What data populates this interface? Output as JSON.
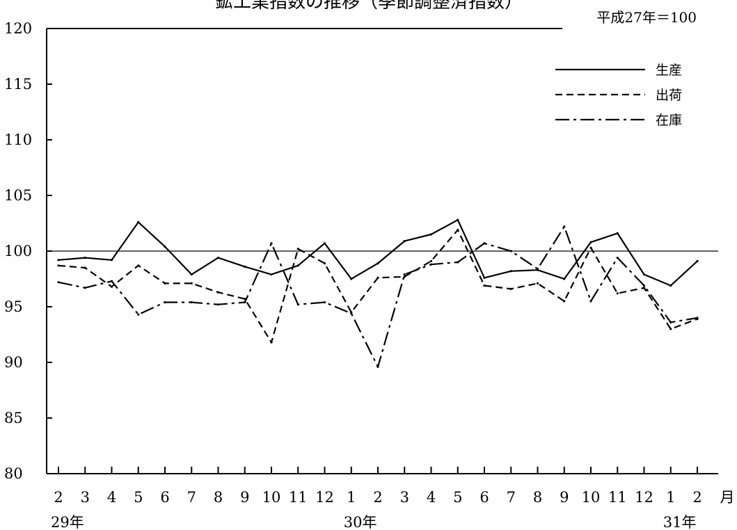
{
  "chart_data": {
    "type": "line",
    "title": "鉱工業指数の推移（季節調整済指数）",
    "base_note": "平成27年＝100",
    "ylim": [
      80,
      120
    ],
    "yticks": [
      80,
      85,
      90,
      95,
      100,
      105,
      110,
      115,
      120
    ],
    "x_unit": "月",
    "categories": [
      "2",
      "3",
      "4",
      "5",
      "6",
      "7",
      "8",
      "9",
      "10",
      "11",
      "12",
      "1",
      "2",
      "3",
      "4",
      "5",
      "6",
      "7",
      "8",
      "9",
      "10",
      "11",
      "12",
      "1",
      "2"
    ],
    "year_labels": [
      {
        "label": "29年",
        "index": 0
      },
      {
        "label": "30年",
        "index": 11
      },
      {
        "label": "31年",
        "index": 23
      }
    ],
    "reference_line": 100,
    "legend_position": "top-right",
    "series": [
      {
        "name": "生産",
        "dash": "solid",
        "values": [
          99.2,
          99.4,
          99.2,
          102.6,
          100.4,
          97.9,
          99.4,
          98.6,
          97.9,
          98.7,
          100.7,
          97.5,
          98.9,
          100.9,
          101.5,
          102.8,
          97.6,
          98.2,
          98.3,
          97.5,
          100.8,
          101.6,
          97.9,
          96.9,
          99.1
        ]
      },
      {
        "name": "出荷",
        "dash": "dashed",
        "values": [
          98.7,
          98.5,
          96.8,
          98.7,
          97.1,
          97.1,
          96.3,
          95.7,
          91.8,
          100.2,
          98.9,
          94.5,
          97.6,
          97.7,
          99.1,
          101.9,
          96.9,
          96.6,
          97.1,
          95.5,
          100.3,
          96.2,
          96.7,
          93.0,
          93.9
        ]
      },
      {
        "name": "在庫",
        "dash": "dashdot",
        "values": [
          97.2,
          96.7,
          97.3,
          94.3,
          95.4,
          95.4,
          95.2,
          95.4,
          100.7,
          95.2,
          95.4,
          94.4,
          89.6,
          97.9,
          98.8,
          99.0,
          100.7,
          100.0,
          98.4,
          102.2,
          95.5,
          99.4,
          96.9,
          93.6,
          94.0
        ]
      }
    ]
  }
}
